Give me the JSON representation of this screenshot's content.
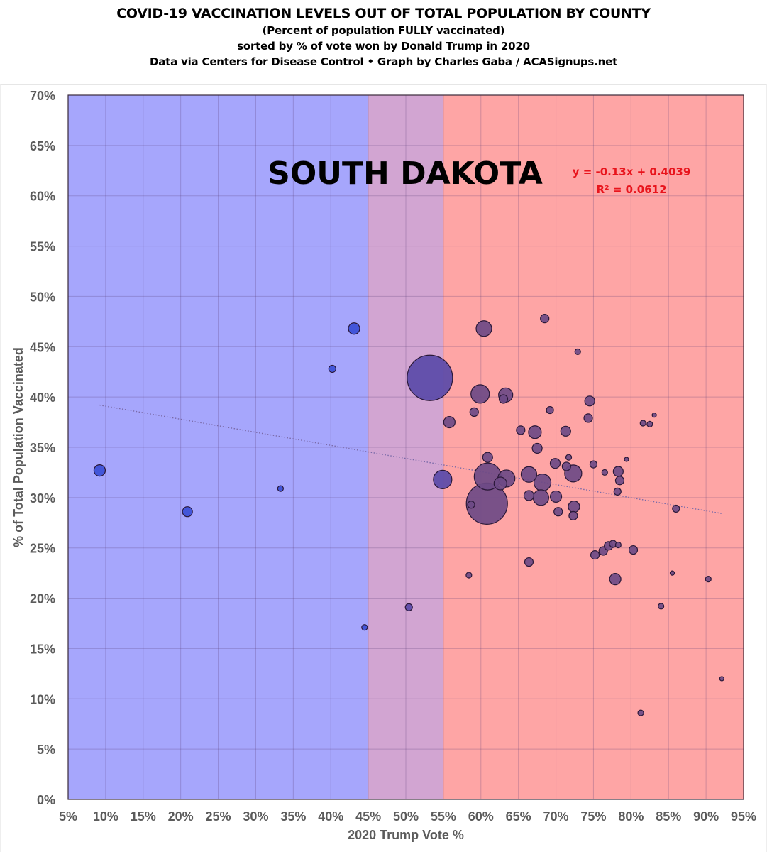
{
  "header": {
    "title": "COVID-19 VACCINATION LEVELS OUT OF TOTAL POPULATION BY COUNTY",
    "subtitle_1": "(Percent of population FULLY vaccinated)",
    "subtitle_2": "sorted by % of vote won by Donald Trump in 2020",
    "credit": "Data via Centers for Disease Control • Graph by Charles Gaba / ACASignups.net"
  },
  "colors": {
    "dem_zone": "#a6a6fc",
    "swing_zone": "#d2a5d2",
    "gop_zone": "#fea5a5",
    "dem_point": "#3b4fd6",
    "gop_point": "#6e4a86",
    "point_outline": "#2a1838",
    "trend": "#7a6aa8",
    "equation": "#e8141c"
  },
  "chart_data": {
    "type": "scatter",
    "title": "SOUTH DAKOTA",
    "xlabel": "2020 Trump Vote %",
    "ylabel": "% of Total Population Vaccinated",
    "xlim": [
      5,
      95
    ],
    "ylim": [
      0,
      70
    ],
    "x_ticks": [
      "5%",
      "10%",
      "15%",
      "20%",
      "25%",
      "30%",
      "35%",
      "40%",
      "45%",
      "50%",
      "55%",
      "60%",
      "65%",
      "70%",
      "75%",
      "80%",
      "85%",
      "90%",
      "95%"
    ],
    "y_ticks": [
      "0%",
      "5%",
      "10%",
      "15%",
      "20%",
      "25%",
      "30%",
      "35%",
      "40%",
      "45%",
      "50%",
      "55%",
      "60%",
      "65%",
      "70%"
    ],
    "x_tick_values": [
      5,
      10,
      15,
      20,
      25,
      30,
      35,
      40,
      45,
      50,
      55,
      60,
      65,
      70,
      75,
      80,
      85,
      90,
      95
    ],
    "y_tick_values": [
      0,
      5,
      10,
      15,
      20,
      25,
      30,
      35,
      40,
      45,
      50,
      55,
      60,
      65,
      70
    ],
    "grid": true,
    "zones": [
      {
        "name": "dem",
        "from": 5,
        "to": 45
      },
      {
        "name": "swing",
        "from": 45,
        "to": 55
      },
      {
        "name": "gop",
        "from": 55,
        "to": 95
      }
    ],
    "trendline": {
      "equation": "y = -0.13x + 0.4039",
      "r_squared": "R² = 0.0612",
      "slope": -0.13,
      "intercept": 0.4039,
      "x_range": [
        9.2,
        92.1
      ]
    },
    "points": [
      {
        "x": 9.2,
        "y": 32.7,
        "size": 8
      },
      {
        "x": 20.9,
        "y": 28.6,
        "size": 7
      },
      {
        "x": 33.3,
        "y": 30.9,
        "size": 4
      },
      {
        "x": 40.2,
        "y": 42.8,
        "size": 5
      },
      {
        "x": 43.1,
        "y": 46.8,
        "size": 8
      },
      {
        "x": 44.5,
        "y": 17.1,
        "size": 4
      },
      {
        "x": 50.4,
        "y": 19.1,
        "size": 5
      },
      {
        "x": 53.2,
        "y": 41.9,
        "size": 32
      },
      {
        "x": 54.9,
        "y": 31.8,
        "size": 13
      },
      {
        "x": 55.8,
        "y": 37.5,
        "size": 8
      },
      {
        "x": 58.4,
        "y": 22.3,
        "size": 4
      },
      {
        "x": 58.7,
        "y": 29.3,
        "size": 5
      },
      {
        "x": 59.1,
        "y": 38.5,
        "size": 6
      },
      {
        "x": 60.4,
        "y": 46.8,
        "size": 11
      },
      {
        "x": 59.9,
        "y": 40.3,
        "size": 13
      },
      {
        "x": 60.9,
        "y": 34.0,
        "size": 7
      },
      {
        "x": 60.9,
        "y": 32.1,
        "size": 19
      },
      {
        "x": 60.8,
        "y": 29.4,
        "size": 29
      },
      {
        "x": 62.6,
        "y": 31.4,
        "size": 9
      },
      {
        "x": 63.4,
        "y": 31.9,
        "size": 12
      },
      {
        "x": 63.0,
        "y": 39.8,
        "size": 6
      },
      {
        "x": 63.3,
        "y": 40.2,
        "size": 10
      },
      {
        "x": 65.3,
        "y": 36.7,
        "size": 6
      },
      {
        "x": 66.4,
        "y": 32.3,
        "size": 11
      },
      {
        "x": 66.4,
        "y": 30.2,
        "size": 7
      },
      {
        "x": 66.4,
        "y": 23.6,
        "size": 6
      },
      {
        "x": 67.2,
        "y": 36.5,
        "size": 9
      },
      {
        "x": 67.5,
        "y": 34.9,
        "size": 7
      },
      {
        "x": 68.0,
        "y": 30.0,
        "size": 11
      },
      {
        "x": 68.2,
        "y": 31.5,
        "size": 12
      },
      {
        "x": 68.5,
        "y": 47.8,
        "size": 6
      },
      {
        "x": 69.2,
        "y": 38.7,
        "size": 5
      },
      {
        "x": 70.0,
        "y": 30.1,
        "size": 8
      },
      {
        "x": 70.3,
        "y": 28.6,
        "size": 6
      },
      {
        "x": 69.9,
        "y": 33.4,
        "size": 7
      },
      {
        "x": 71.3,
        "y": 36.6,
        "size": 7
      },
      {
        "x": 71.4,
        "y": 33.1,
        "size": 6
      },
      {
        "x": 71.7,
        "y": 34.0,
        "size": 4
      },
      {
        "x": 72.3,
        "y": 32.4,
        "size": 12
      },
      {
        "x": 72.4,
        "y": 29.1,
        "size": 8
      },
      {
        "x": 72.3,
        "y": 28.2,
        "size": 6
      },
      {
        "x": 72.9,
        "y": 44.5,
        "size": 4
      },
      {
        "x": 74.5,
        "y": 39.6,
        "size": 7
      },
      {
        "x": 74.3,
        "y": 37.9,
        "size": 6
      },
      {
        "x": 75.0,
        "y": 33.3,
        "size": 5
      },
      {
        "x": 75.2,
        "y": 24.3,
        "size": 6
      },
      {
        "x": 76.3,
        "y": 24.7,
        "size": 6
      },
      {
        "x": 76.5,
        "y": 32.5,
        "size": 4
      },
      {
        "x": 77.0,
        "y": 25.2,
        "size": 6
      },
      {
        "x": 77.6,
        "y": 25.4,
        "size": 5
      },
      {
        "x": 78.3,
        "y": 25.3,
        "size": 4
      },
      {
        "x": 77.9,
        "y": 21.9,
        "size": 8
      },
      {
        "x": 78.3,
        "y": 32.6,
        "size": 7
      },
      {
        "x": 78.2,
        "y": 30.6,
        "size": 5
      },
      {
        "x": 78.5,
        "y": 31.7,
        "size": 6
      },
      {
        "x": 79.4,
        "y": 33.8,
        "size": 3
      },
      {
        "x": 80.3,
        "y": 24.8,
        "size": 6
      },
      {
        "x": 81.6,
        "y": 37.4,
        "size": 4
      },
      {
        "x": 82.5,
        "y": 37.3,
        "size": 4
      },
      {
        "x": 83.1,
        "y": 38.2,
        "size": 3
      },
      {
        "x": 86.0,
        "y": 28.9,
        "size": 5
      },
      {
        "x": 85.5,
        "y": 22.5,
        "size": 3
      },
      {
        "x": 84.0,
        "y": 19.2,
        "size": 4
      },
      {
        "x": 90.3,
        "y": 21.9,
        "size": 4
      },
      {
        "x": 92.1,
        "y": 12.0,
        "size": 3
      },
      {
        "x": 81.3,
        "y": 8.6,
        "size": 4
      }
    ]
  }
}
